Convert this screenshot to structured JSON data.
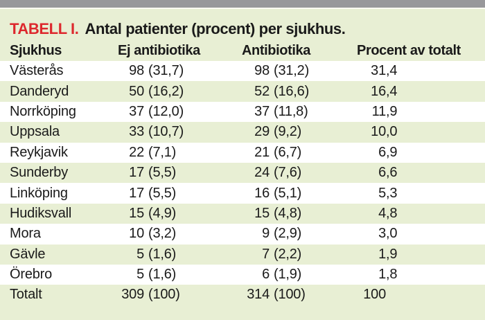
{
  "title": {
    "label": "TABELL I.",
    "caption": "Antal patienter (procent) per sjukhus."
  },
  "table": {
    "headers": [
      "Sjukhus",
      "Ej antibiotika",
      "Antibiotika",
      "Procent av totalt"
    ],
    "rows": [
      {
        "sjukhus": "Västerås",
        "ej_n": "98",
        "ej_pct": "(31,7)",
        "ab_n": "98",
        "ab_pct": "(31,2)",
        "tot_int": "31",
        "tot_dec": ",4"
      },
      {
        "sjukhus": "Danderyd",
        "ej_n": "50",
        "ej_pct": "(16,2)",
        "ab_n": "52",
        "ab_pct": "(16,6)",
        "tot_int": "16",
        "tot_dec": ",4"
      },
      {
        "sjukhus": "Norrköping",
        "ej_n": "37",
        "ej_pct": "(12,0)",
        "ab_n": "37",
        "ab_pct": "(11,8)",
        "tot_int": "11",
        "tot_dec": ",9"
      },
      {
        "sjukhus": "Uppsala",
        "ej_n": "33",
        "ej_pct": "(10,7)",
        "ab_n": "29",
        "ab_pct": "(9,2)",
        "tot_int": "10",
        "tot_dec": ",0"
      },
      {
        "sjukhus": "Reykjavik",
        "ej_n": "22",
        "ej_pct": "(7,1)",
        "ab_n": "21",
        "ab_pct": "(6,7)",
        "tot_int": "6",
        "tot_dec": ",9"
      },
      {
        "sjukhus": "Sunderby",
        "ej_n": "17",
        "ej_pct": "(5,5)",
        "ab_n": "24",
        "ab_pct": "(7,6)",
        "tot_int": "6",
        "tot_dec": ",6"
      },
      {
        "sjukhus": "Linköping",
        "ej_n": "17",
        "ej_pct": "(5,5)",
        "ab_n": "16",
        "ab_pct": "(5,1)",
        "tot_int": "5",
        "tot_dec": ",3"
      },
      {
        "sjukhus": "Hudiksvall",
        "ej_n": "15",
        "ej_pct": "(4,9)",
        "ab_n": "15",
        "ab_pct": "(4,8)",
        "tot_int": "4",
        "tot_dec": ",8"
      },
      {
        "sjukhus": "Mora",
        "ej_n": "10",
        "ej_pct": "(3,2)",
        "ab_n": "9",
        "ab_pct": "(2,9)",
        "tot_int": "3",
        "tot_dec": ",0"
      },
      {
        "sjukhus": "Gävle",
        "ej_n": "5",
        "ej_pct": "(1,6)",
        "ab_n": "7",
        "ab_pct": "(2,2)",
        "tot_int": "1",
        "tot_dec": ",9"
      },
      {
        "sjukhus": "Örebro",
        "ej_n": "5",
        "ej_pct": "(1,6)",
        "ab_n": "6",
        "ab_pct": "(1,9)",
        "tot_int": "1",
        "tot_dec": ",8"
      },
      {
        "sjukhus": "Totalt",
        "ej_n": "309",
        "ej_pct": "(100)",
        "ab_n": "314",
        "ab_pct": "(100)",
        "tot_int": "100",
        "tot_dec": ""
      }
    ]
  },
  "colors": {
    "top_bar_gray": "#98989b",
    "panel_green": "#e8efd4",
    "row_white": "#ffffff",
    "accent_red": "#dd282d",
    "text": "#1a1a1a"
  }
}
